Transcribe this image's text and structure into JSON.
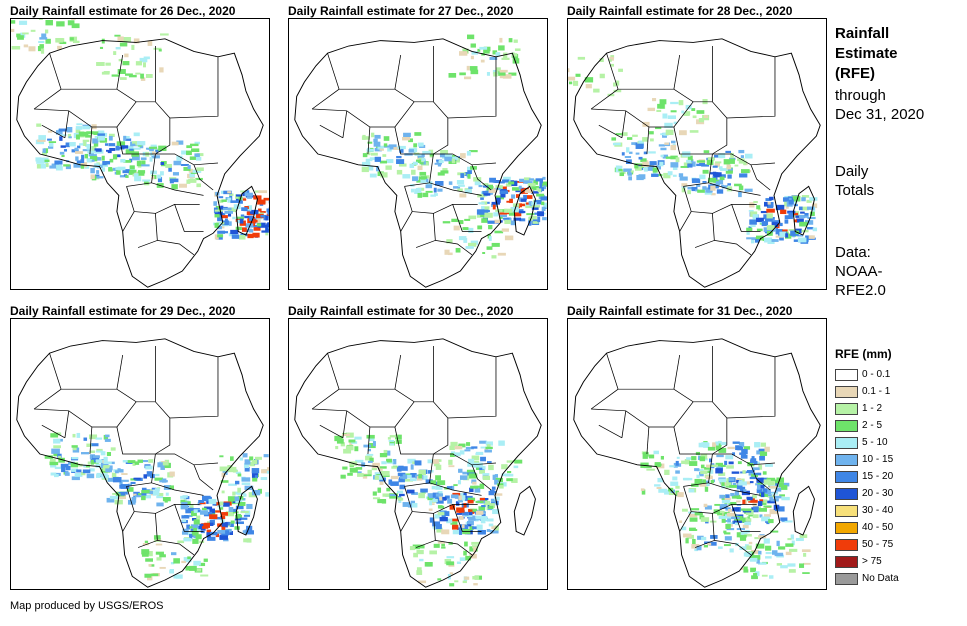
{
  "panels": [
    {
      "title": "Daily Rainfall estimate for 26 Dec., 2020",
      "pattern": "d26"
    },
    {
      "title": "Daily Rainfall estimate for 27 Dec., 2020",
      "pattern": "d27"
    },
    {
      "title": "Daily Rainfall estimate for 28 Dec., 2020",
      "pattern": "d28"
    },
    {
      "title": "Daily Rainfall estimate for 29 Dec., 2020",
      "pattern": "d29"
    },
    {
      "title": "Daily Rainfall estimate for 30 Dec., 2020",
      "pattern": "d30"
    },
    {
      "title": "Daily Rainfall estimate for 31 Dec., 2020",
      "pattern": "d31"
    }
  ],
  "side": {
    "title_line1": "Rainfall",
    "title_line2": "Estimate",
    "title_line3": "(RFE)",
    "through_line1": "through",
    "through_line2": "Dec 31, 2020",
    "totals_line1": "Daily",
    "totals_line2": "Totals",
    "data_line1": "Data:",
    "data_line2": "NOAA-",
    "data_line3": "RFE2.0"
  },
  "legend": {
    "title": "RFE (mm)",
    "items": [
      {
        "label": "0 - 0.1",
        "color": "#ffffff"
      },
      {
        "label": "0.1 - 1",
        "color": "#e8d7b7"
      },
      {
        "label": "1 - 2",
        "color": "#b6f2a6"
      },
      {
        "label": "2 - 5",
        "color": "#6ee36a"
      },
      {
        "label": "5 - 10",
        "color": "#aaeef5"
      },
      {
        "label": "10 - 15",
        "color": "#6fb3ee"
      },
      {
        "label": "15 - 20",
        "color": "#3f86e6"
      },
      {
        "label": "20 - 30",
        "color": "#1f55d6"
      },
      {
        "label": "30 - 40",
        "color": "#f7e07a"
      },
      {
        "label": "40 - 50",
        "color": "#f2a700"
      },
      {
        "label": "50 - 75",
        "color": "#f03c0a"
      },
      {
        "label": "> 75",
        "color": "#a11a1a"
      },
      {
        "label": "No Data",
        "color": "#9a9a9a"
      }
    ]
  },
  "footer": "Map produced by USGS/EROS"
}
